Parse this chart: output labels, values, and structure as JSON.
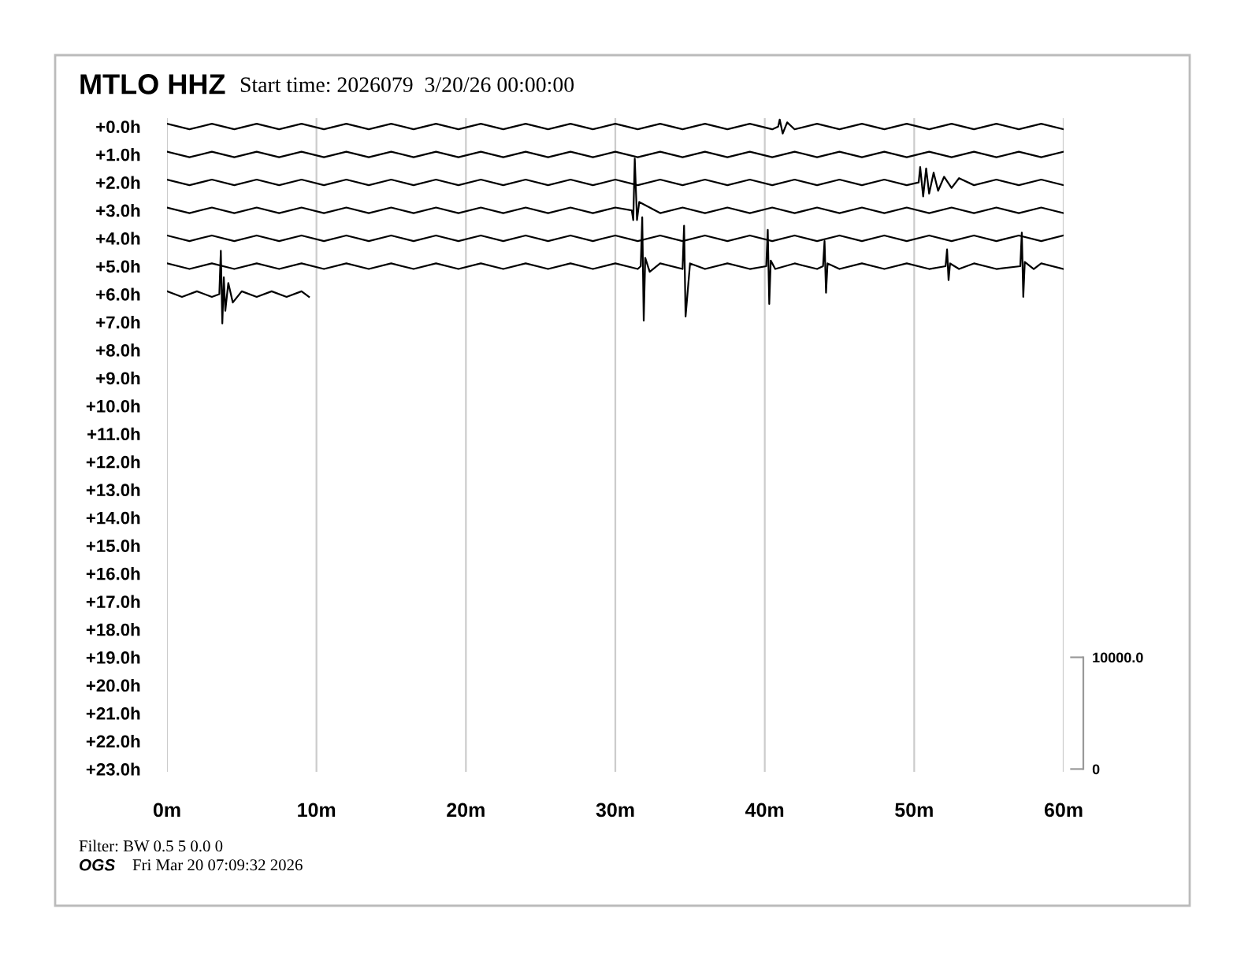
{
  "chart_data": {
    "type": "line",
    "title": "MTLO HHZ",
    "subtitle": "Start time: 2026079  3/20/26 00:00:00",
    "annotations": [
      "Filter: BW 0.5 5 0.0 0",
      "OGS",
      "Fri Mar 20 07:09:32 2026"
    ],
    "xlim": [
      0,
      60
    ],
    "xticks": [
      {
        "value": 0,
        "label": "0m"
      },
      {
        "value": 10,
        "label": "10m"
      },
      {
        "value": 20,
        "label": "20m"
      },
      {
        "value": 30,
        "label": "30m"
      },
      {
        "value": 40,
        "label": "40m"
      },
      {
        "value": 50,
        "label": "50m"
      },
      {
        "value": 60,
        "label": "60m"
      }
    ],
    "ylim": [
      23.1,
      -0.3
    ],
    "yticks": [
      {
        "value": 0,
        "label": "+0.0h"
      },
      {
        "value": 1,
        "label": "+1.0h"
      },
      {
        "value": 2,
        "label": "+2.0h"
      },
      {
        "value": 3,
        "label": "+3.0h"
      },
      {
        "value": 4,
        "label": "+4.0h"
      },
      {
        "value": 5,
        "label": "+5.0h"
      },
      {
        "value": 6,
        "label": "+6.0h"
      },
      {
        "value": 7,
        "label": "+7.0h"
      },
      {
        "value": 8,
        "label": "+8.0h"
      },
      {
        "value": 9,
        "label": "+9.0h"
      },
      {
        "value": 10,
        "label": "+10.0h"
      },
      {
        "value": 11,
        "label": "+11.0h"
      },
      {
        "value": 12,
        "label": "+12.0h"
      },
      {
        "value": 13,
        "label": "+13.0h"
      },
      {
        "value": 14,
        "label": "+14.0h"
      },
      {
        "value": 15,
        "label": "+15.0h"
      },
      {
        "value": 16,
        "label": "+16.0h"
      },
      {
        "value": 17,
        "label": "+17.0h"
      },
      {
        "value": 18,
        "label": "+18.0h"
      },
      {
        "value": 19,
        "label": "+19.0h"
      },
      {
        "value": 20,
        "label": "+20.0h"
      },
      {
        "value": 21,
        "label": "+21.0h"
      },
      {
        "value": 22,
        "label": "+22.0h"
      },
      {
        "value": 23,
        "label": "+23.0h"
      }
    ],
    "y2lim": [
      -250,
      58250
    ],
    "y2ticks": [
      0,
      {
        "value": 10000,
        "label": "10000.0"
      }
    ],
    "grid": "x",
    "legend": false,
    "marker": "none",
    "line_style": "solid",
    "series": [
      {
        "color": "#000000",
        "x": [
          0,
          1.5,
          3,
          4.5,
          6,
          7.5,
          9,
          10.5,
          12,
          13.5,
          15,
          16.5,
          18,
          19.5,
          21,
          22.5,
          24,
          25.5,
          27,
          28.5,
          30,
          31.5,
          33,
          34.5,
          36,
          37.5,
          39,
          40.5,
          40.9,
          41,
          41.2,
          41.5,
          42,
          43.5,
          45,
          46.5,
          48,
          49.5,
          51,
          52.5,
          54,
          55.5,
          57,
          58.5,
          60
        ],
        "values": [
          -0.1,
          0.1,
          -0.1,
          0.1,
          -0.1,
          0.1,
          -0.1,
          0.1,
          -0.1,
          0.1,
          -0.1,
          0.1,
          -0.1,
          0.1,
          -0.1,
          0.1,
          -0.1,
          0.1,
          -0.1,
          0.1,
          -0.1,
          0.1,
          -0.1,
          0.1,
          -0.1,
          0.1,
          -0.1,
          0.1,
          0.0,
          -0.25,
          0.25,
          -0.15,
          0.1,
          -0.1,
          0.1,
          -0.1,
          0.1,
          -0.1,
          0.1,
          -0.1,
          0.1,
          -0.1,
          0.1,
          -0.1,
          0.1
        ]
      },
      {
        "color": "#000000",
        "x": [
          0,
          1.5,
          3,
          4.5,
          6,
          7.5,
          9,
          10.5,
          12,
          13.5,
          15,
          16.5,
          18,
          19.5,
          21,
          22.5,
          24,
          25.5,
          27,
          28.5,
          30,
          31.5,
          33,
          34.5,
          36,
          37.5,
          39,
          40.5,
          42,
          43.5,
          45,
          46.5,
          48,
          49.5,
          51,
          52.5,
          54,
          55.5,
          57,
          58.5,
          60
        ],
        "values": [
          0.9,
          1.1,
          0.9,
          1.1,
          0.9,
          1.1,
          0.9,
          1.1,
          0.9,
          1.1,
          0.9,
          1.1,
          0.9,
          1.1,
          0.9,
          1.1,
          0.9,
          1.1,
          0.9,
          1.1,
          0.9,
          1.1,
          0.9,
          1.1,
          0.9,
          1.1,
          0.9,
          1.1,
          0.9,
          1.1,
          0.9,
          1.1,
          0.9,
          1.1,
          0.9,
          1.1,
          0.9,
          1.1,
          0.9,
          1.1,
          0.9
        ]
      },
      {
        "color": "#000000",
        "x": [
          0,
          1.5,
          3,
          4.5,
          6,
          7.5,
          9,
          10.5,
          12,
          13.5,
          15,
          16.5,
          18,
          19.5,
          21,
          22.5,
          24,
          25.5,
          27,
          28.5,
          30,
          31.5,
          33,
          34.5,
          36,
          37.5,
          39,
          40.5,
          42,
          43.5,
          45,
          46.5,
          48,
          49.5,
          50.3,
          50.4,
          50.6,
          50.8,
          51,
          51.3,
          51.6,
          52,
          52.5,
          53,
          54,
          55.5,
          57,
          58.5,
          60
        ],
        "values": [
          1.9,
          2.1,
          1.9,
          2.1,
          1.9,
          2.1,
          1.9,
          2.1,
          1.9,
          2.1,
          1.9,
          2.1,
          1.9,
          2.1,
          1.9,
          2.1,
          1.9,
          2.1,
          1.9,
          2.1,
          1.9,
          2.1,
          1.9,
          2.1,
          1.9,
          2.1,
          1.9,
          2.1,
          1.9,
          2.1,
          1.9,
          2.1,
          1.9,
          2.1,
          2.0,
          1.45,
          2.5,
          1.5,
          2.4,
          1.65,
          2.3,
          1.8,
          2.2,
          1.85,
          2.1,
          1.9,
          2.1,
          1.9,
          2.1
        ]
      },
      {
        "color": "#000000",
        "x": [
          0,
          1.5,
          3,
          4.5,
          6,
          7.5,
          9,
          10.5,
          12,
          13.5,
          15,
          16.5,
          18,
          19.5,
          21,
          22.5,
          24,
          25.5,
          27,
          28.5,
          30,
          31.1,
          31.2,
          31.3,
          31.45,
          31.6,
          33,
          34.5,
          36,
          37.5,
          39,
          40.5,
          42,
          43.5,
          45,
          46.5,
          48,
          49.5,
          51,
          52.5,
          54,
          55.5,
          57,
          58.5,
          60
        ],
        "values": [
          2.9,
          3.1,
          2.9,
          3.1,
          2.9,
          3.1,
          2.9,
          3.1,
          2.9,
          3.1,
          2.9,
          3.1,
          2.9,
          3.1,
          2.9,
          3.1,
          2.9,
          3.1,
          2.9,
          3.1,
          2.9,
          3.0,
          3.35,
          1.15,
          3.35,
          2.7,
          3.1,
          2.9,
          3.1,
          2.9,
          3.1,
          2.9,
          3.1,
          2.9,
          3.1,
          2.9,
          3.1,
          2.9,
          3.1,
          2.9,
          3.1,
          2.9,
          3.1,
          2.9,
          3.1
        ]
      },
      {
        "color": "#000000",
        "x": [
          0,
          1.5,
          3,
          4.5,
          6,
          7.5,
          9,
          10.5,
          12,
          13.5,
          15,
          16.5,
          18,
          19.5,
          21,
          22.5,
          24,
          25.5,
          27,
          28.5,
          30,
          31.5,
          33,
          34.5,
          36,
          37.5,
          39,
          40.5,
          42,
          43.5,
          45,
          46.5,
          48,
          49.5,
          51,
          52.5,
          54,
          55.5,
          57,
          58.5,
          60
        ],
        "values": [
          3.9,
          4.1,
          3.9,
          4.1,
          3.9,
          4.1,
          3.9,
          4.1,
          3.9,
          4.1,
          3.9,
          4.1,
          3.9,
          4.1,
          3.9,
          4.1,
          3.9,
          4.1,
          3.9,
          4.1,
          3.9,
          4.1,
          3.9,
          4.1,
          3.9,
          4.1,
          3.9,
          4.1,
          3.9,
          4.1,
          3.9,
          4.1,
          3.9,
          4.1,
          3.9,
          4.1,
          3.9,
          4.1,
          3.9,
          4.1,
          3.9
        ]
      },
      {
        "color": "#000000",
        "x": [
          0,
          1.5,
          3,
          4.5,
          6,
          7.5,
          9,
          10.5,
          12,
          13.5,
          15,
          16.5,
          18,
          19.5,
          21,
          22.5,
          24,
          25.5,
          27,
          28.5,
          30,
          31.5,
          31.7,
          31.8,
          31.9,
          32.0,
          32.3,
          33,
          34.5,
          34.6,
          34.7,
          35,
          36,
          37.5,
          39,
          40.1,
          40.2,
          40.3,
          40.4,
          40.7,
          42,
          43.5,
          43.9,
          44.0,
          44.1,
          44.2,
          45,
          46.5,
          48,
          49.5,
          51,
          52.1,
          52.2,
          52.3,
          52.4,
          53,
          54,
          55.5,
          57.1,
          57.2,
          57.3,
          57.4,
          58,
          58.5,
          60
        ],
        "values": [
          4.9,
          5.1,
          4.9,
          5.1,
          4.9,
          5.1,
          4.9,
          5.1,
          4.9,
          5.1,
          4.9,
          5.1,
          4.9,
          5.1,
          4.9,
          5.1,
          4.9,
          5.1,
          4.9,
          5.1,
          4.9,
          5.1,
          5.0,
          3.25,
          6.95,
          4.7,
          5.2,
          4.9,
          5.1,
          3.55,
          6.8,
          4.9,
          5.1,
          4.9,
          5.1,
          5.0,
          3.7,
          6.35,
          4.8,
          5.1,
          4.9,
          5.1,
          5.0,
          4.1,
          5.95,
          4.9,
          5.1,
          4.9,
          5.1,
          4.9,
          5.1,
          5.0,
          4.4,
          5.5,
          4.9,
          5.1,
          4.9,
          5.1,
          5.0,
          3.8,
          6.1,
          4.85,
          5.1,
          4.9,
          5.1
        ]
      },
      {
        "color": "#000000",
        "x": [
          0,
          1,
          2,
          3,
          3.5,
          3.6,
          3.7,
          3.8,
          3.9,
          4.1,
          4.4,
          5,
          6,
          7,
          8,
          9,
          9.5
        ],
        "values": [
          5.9,
          6.1,
          5.9,
          6.1,
          6.0,
          4.45,
          7.05,
          5.4,
          6.6,
          5.6,
          6.3,
          5.9,
          6.1,
          5.9,
          6.1,
          5.9,
          6.1
        ]
      }
    ]
  }
}
